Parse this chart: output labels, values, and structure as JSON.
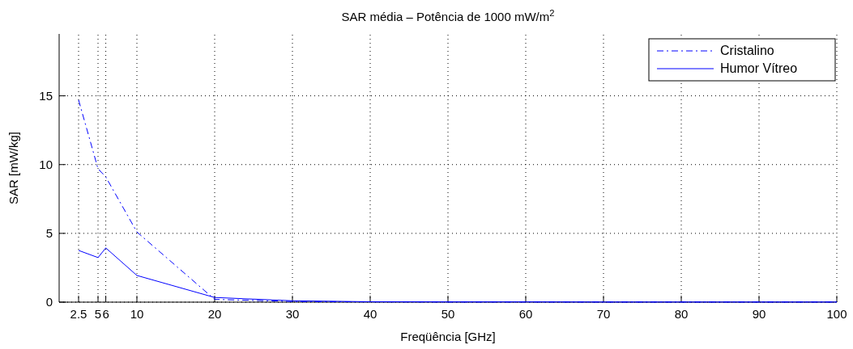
{
  "chart_data": {
    "type": "line",
    "title": "SAR média – Potência de 1000 mW/m$^{2}$",
    "xlabel": "Freqüência [GHz]",
    "ylabel": "SAR [mW/kg]",
    "x": [
      2.5,
      5,
      6,
      10,
      20,
      30,
      40,
      50,
      60,
      70,
      80,
      90,
      100
    ],
    "series": [
      {
        "name": "Cristalino",
        "color": "#0000ff",
        "line_style": "dashdot",
        "values": [
          14.7,
          9.7,
          9.1,
          5.1,
          0.2,
          0.05,
          0.02,
          0.01,
          0.01,
          0.01,
          0.01,
          0.01,
          0.01
        ]
      },
      {
        "name": "Humor Vítreo",
        "color": "#0000ff",
        "line_style": "solid",
        "values": [
          3.76,
          3.24,
          3.94,
          1.94,
          0.34,
          0.1,
          0.03,
          0.02,
          0.02,
          0.01,
          0.01,
          0.01,
          0.01
        ]
      }
    ],
    "xlim": [
      0,
      100
    ],
    "xticks": [
      2.5,
      5,
      6,
      10,
      20,
      30,
      40,
      50,
      60,
      70,
      80,
      90,
      100
    ],
    "ylim": [
      0,
      19.5
    ],
    "yticks": [
      0,
      5,
      10,
      15
    ],
    "grid": true,
    "legend": "top right",
    "marker": "none"
  }
}
